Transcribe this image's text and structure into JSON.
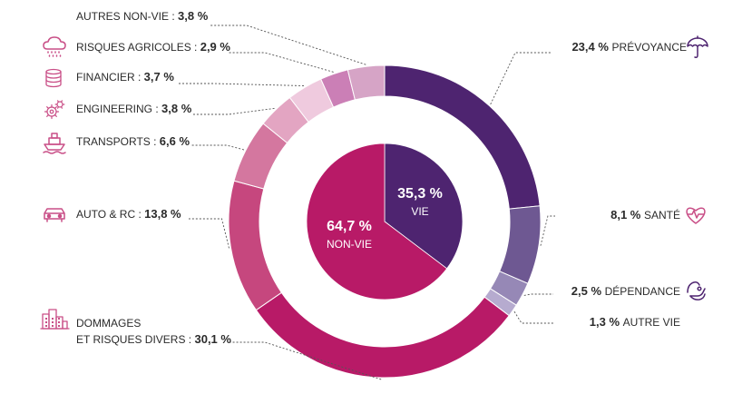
{
  "chart_data": {
    "type": "pie",
    "inner": {
      "slices": [
        {
          "name": "VIE",
          "value": "35,3 %",
          "num": 35.3,
          "color": "#4e2470"
        },
        {
          "name": "NON-VIE",
          "value": "64,7 %",
          "num": 64.7,
          "color": "#b81a67"
        }
      ]
    },
    "outer": {
      "slices": [
        {
          "label": "PRÉVOYANCE",
          "value": "23,4 %",
          "num": 23.4,
          "color": "#4e2470",
          "icon": "umbrella-icon"
        },
        {
          "label": "SANTÉ",
          "value": "8,1 %",
          "num": 8.1,
          "color": "#6e5892",
          "icon": "heart-pulse-icon"
        },
        {
          "label": "DÉPENDANCE",
          "value": "2,5 %",
          "num": 2.5,
          "color": "#9688b6",
          "icon": "helping-hand-icon"
        },
        {
          "label": "AUTRE VIE",
          "value": "1,3 %",
          "num": 1.3,
          "color": "#b6abcf",
          "icon": ""
        },
        {
          "label": "DOMMAGES\nET RISQUES DIVERS :",
          "value": "30,1 %",
          "num": 30.1,
          "color": "#b81a67",
          "icon": "buildings-icon"
        },
        {
          "label": "AUTO & RC :",
          "value": "13,8 %",
          "num": 13.8,
          "color": "#c6477e",
          "icon": "car-icon"
        },
        {
          "label": "TRANSPORTS :",
          "value": "6,6 %",
          "num": 6.6,
          "color": "#d4779f",
          "icon": "ship-icon"
        },
        {
          "label": "ENGINEERING :",
          "value": "3,8 %",
          "num": 3.8,
          "color": "#e3a5c2",
          "icon": "gears-icon"
        },
        {
          "label": "FINANCIER :",
          "value": "3,7 %",
          "num": 3.7,
          "color": "#efcade",
          "icon": "coins-icon"
        },
        {
          "label": "RISQUES AGRICOLES :",
          "value": "2,9 %",
          "num": 2.9,
          "color": "#cb7fb6",
          "icon": "cloud-rain-icon"
        },
        {
          "label": "AUTRES NON-VIE :",
          "value": "3,8 %",
          "num": 3.8,
          "color": "#d6a4c6",
          "icon": ""
        }
      ]
    }
  },
  "colors": {
    "icon_pink": "#c94f87",
    "icon_purple": "#4e2470",
    "text": "#2b2b2b",
    "leader": "#555555"
  }
}
